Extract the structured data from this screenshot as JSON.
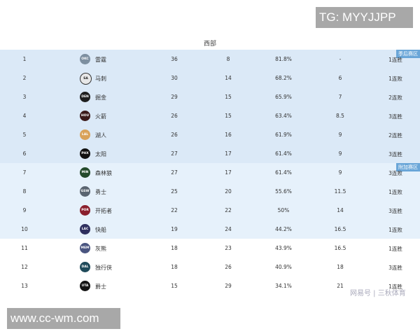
{
  "title": "西部",
  "zones": {
    "playoff": "季后赛区",
    "playin": "附加赛区"
  },
  "rows": [
    {
      "rank": "1",
      "team": "雷霆",
      "logo": "OKC",
      "color": "#7d8fa0",
      "w": "36",
      "l": "8",
      "pct": "81.8%",
      "gb": "-",
      "streak": "1连胜"
    },
    {
      "rank": "2",
      "team": "马刺",
      "logo": "SA",
      "color": "#e8e8e8",
      "w": "30",
      "l": "14",
      "pct": "68.2%",
      "gb": "6",
      "streak": "1连败"
    },
    {
      "rank": "3",
      "team": "掘金",
      "logo": "DEN",
      "color": "#1e1e1e",
      "w": "29",
      "l": "15",
      "pct": "65.9%",
      "gb": "7",
      "streak": "2连败"
    },
    {
      "rank": "4",
      "team": "火箭",
      "logo": "HOU",
      "color": "#3a1a1a",
      "w": "26",
      "l": "15",
      "pct": "63.4%",
      "gb": "8.5",
      "streak": "3连胜"
    },
    {
      "rank": "5",
      "team": "湖人",
      "logo": "LAL",
      "color": "#d9a25a",
      "w": "26",
      "l": "16",
      "pct": "61.9%",
      "gb": "9",
      "streak": "2连胜"
    },
    {
      "rank": "6",
      "team": "太阳",
      "logo": "PHX",
      "color": "#111111",
      "w": "27",
      "l": "17",
      "pct": "61.4%",
      "gb": "9",
      "streak": "3连胜"
    },
    {
      "rank": "7",
      "team": "森林狼",
      "logo": "MIN",
      "color": "#244a2c",
      "w": "27",
      "l": "17",
      "pct": "61.4%",
      "gb": "9",
      "streak": "3连败"
    },
    {
      "rank": "8",
      "team": "勇士",
      "logo": "GSW",
      "color": "#5a6470",
      "w": "25",
      "l": "20",
      "pct": "55.6%",
      "gb": "11.5",
      "streak": "1连败"
    },
    {
      "rank": "9",
      "team": "开拓者",
      "logo": "POR",
      "color": "#8a1f2d",
      "w": "22",
      "l": "22",
      "pct": "50%",
      "gb": "14",
      "streak": "3连胜"
    },
    {
      "rank": "10",
      "team": "快船",
      "logo": "LAC",
      "color": "#2e2f5e",
      "w": "19",
      "l": "24",
      "pct": "44.2%",
      "gb": "16.5",
      "streak": "1连败"
    },
    {
      "rank": "11",
      "team": "灰熊",
      "logo": "MEM",
      "color": "#4a5580",
      "w": "18",
      "l": "23",
      "pct": "43.9%",
      "gb": "16.5",
      "streak": "1连胜"
    },
    {
      "rank": "12",
      "team": "独行侠",
      "logo": "DAL",
      "color": "#1f4a5a",
      "w": "18",
      "l": "26",
      "pct": "40.9%",
      "gb": "18",
      "streak": "3连胜"
    },
    {
      "rank": "13",
      "team": "爵士",
      "logo": "UTA",
      "color": "#151515",
      "w": "15",
      "l": "29",
      "pct": "34.1%",
      "gb": "21",
      "streak": "1连胜"
    }
  ],
  "watermarks": {
    "tg": "TG: MYYJJPP",
    "site": "www.cc-wm.com",
    "source": "网易号 | 三秋体育"
  }
}
